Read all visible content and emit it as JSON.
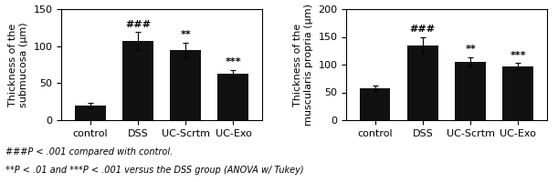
{
  "chart_data": [
    {
      "type": "bar",
      "y_label": "Thickness of the\nsubmucosa (μm)",
      "categories": [
        "control",
        "DSS",
        "UC-Scrtm",
        "UC-Exo"
      ],
      "values": [
        20,
        107,
        95,
        63
      ],
      "errors": [
        3,
        12,
        10,
        5
      ],
      "color": "#111111",
      "ylim": [
        0,
        150
      ],
      "yticks": [
        0,
        50,
        100,
        150
      ],
      "annotations": [
        null,
        "###",
        "**",
        "***"
      ]
    },
    {
      "type": "bar",
      "y_label": "Thickness of the\nmuscularis propria (μm)",
      "categories": [
        "control",
        "DSS",
        "UC-Scrtm",
        "UC-Exo"
      ],
      "values": [
        57,
        135,
        105,
        97
      ],
      "errors": [
        5,
        14,
        8,
        6
      ],
      "color": "#111111",
      "ylim": [
        0,
        200
      ],
      "yticks": [
        0,
        50,
        100,
        150,
        200
      ],
      "annotations": [
        null,
        "###",
        "**",
        "***"
      ]
    }
  ],
  "footnotes": [
    "###P < .001 compared with control.",
    "**P < .01 and ***P < .001 versus the DSS group (ANOVA w/ Tukey)"
  ]
}
